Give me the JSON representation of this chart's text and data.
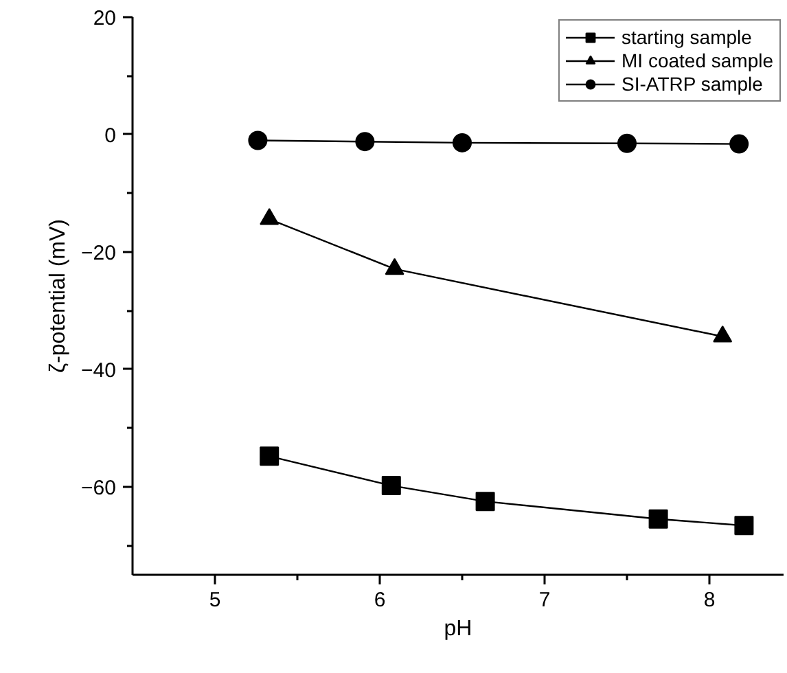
{
  "chart_data": {
    "type": "line",
    "xlabel": "pH",
    "ylabel": "ζ-potential (mV)",
    "xlim": [
      4.5,
      8.45
    ],
    "ylim": [
      -75,
      20
    ],
    "xticks": [
      5,
      {
        "value": 5.5,
        "label": null
      },
      6,
      {
        "value": 6.5,
        "label": null
      },
      7,
      {
        "value": 7.5,
        "label": null
      },
      8
    ],
    "yticks": [
      {
        "value": -70,
        "label": null
      },
      -60,
      {
        "value": -50,
        "label": null
      },
      -40,
      {
        "value": -30,
        "label": null
      },
      -20,
      {
        "value": -10,
        "label": null
      },
      0,
      {
        "value": 10,
        "label": null
      },
      20
    ],
    "grid": false,
    "legend": "top right",
    "line_style": "solid",
    "series": [
      {
        "name": "starting sample",
        "color": "#000000",
        "marker": "square",
        "x": [
          5.33,
          6.07,
          6.64,
          7.69,
          8.21
        ],
        "values": [
          -54.8,
          -59.8,
          -62.5,
          -65.5,
          -66.6
        ]
      },
      {
        "name": "MI coated sample",
        "color": "#000000",
        "marker": "triangle",
        "x": [
          5.33,
          6.09,
          8.08
        ],
        "values": [
          -14.4,
          -22.9,
          -34.4
        ]
      },
      {
        "name": "SI-ATRP sample",
        "color": "#000000",
        "marker": "circle",
        "x": [
          5.26,
          5.91,
          6.5,
          7.5,
          8.18
        ],
        "values": [
          -1.0,
          -1.2,
          -1.4,
          -1.5,
          -1.6
        ]
      }
    ]
  }
}
